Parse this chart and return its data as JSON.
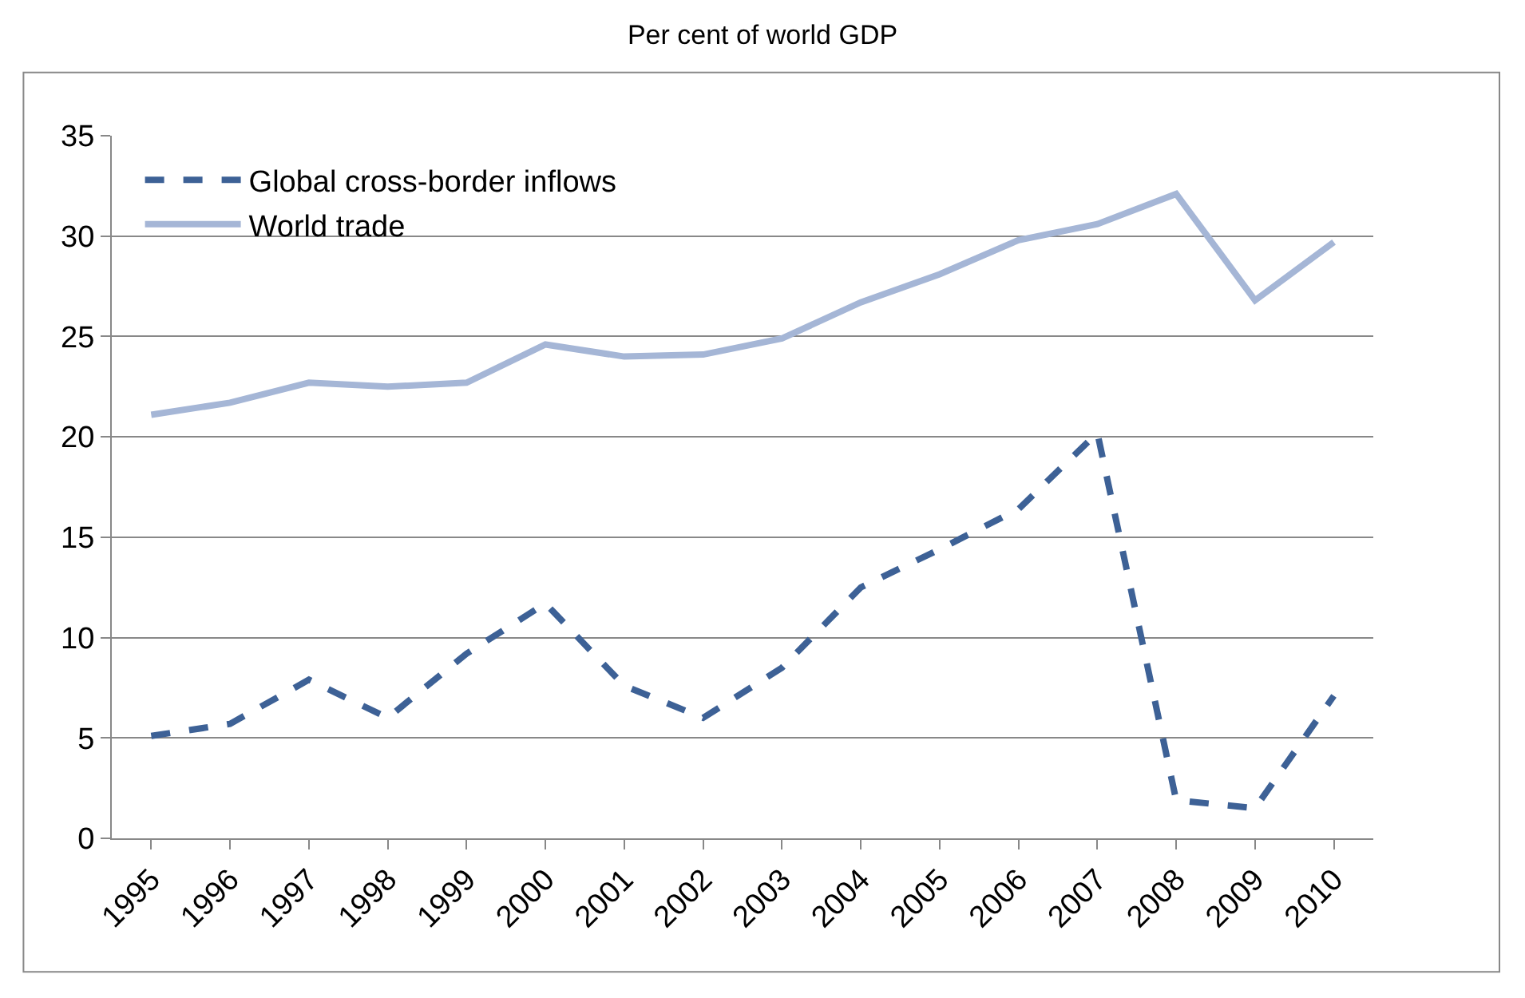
{
  "chart_data": {
    "type": "line",
    "title": "Per cent of world GDP",
    "categories": [
      "1995",
      "1996",
      "1997",
      "1998",
      "1999",
      "2000",
      "2001",
      "2002",
      "2003",
      "2004",
      "2005",
      "2006",
      "2007",
      "2008",
      "2009",
      "2010"
    ],
    "series": [
      {
        "name": "Global cross-border inflows",
        "color": "#3d6196",
        "line_style": "dashed",
        "values": [
          5.1,
          5.7,
          7.9,
          6.0,
          9.2,
          11.7,
          7.6,
          6.0,
          8.5,
          12.5,
          14.4,
          16.4,
          20.2,
          1.9,
          1.5,
          7.1
        ]
      },
      {
        "name": "World trade",
        "color": "#a5b6d6",
        "line_style": "solid",
        "values": [
          21.1,
          21.7,
          22.7,
          22.5,
          22.7,
          24.6,
          24.0,
          24.1,
          24.9,
          26.7,
          28.1,
          29.8,
          30.6,
          32.1,
          26.8,
          29.7
        ]
      }
    ],
    "ylim": [
      0,
      35
    ],
    "yticks": [
      0,
      5,
      10,
      15,
      20,
      25,
      30,
      35
    ],
    "grid": "y",
    "legend": "top left",
    "marker": "none"
  }
}
